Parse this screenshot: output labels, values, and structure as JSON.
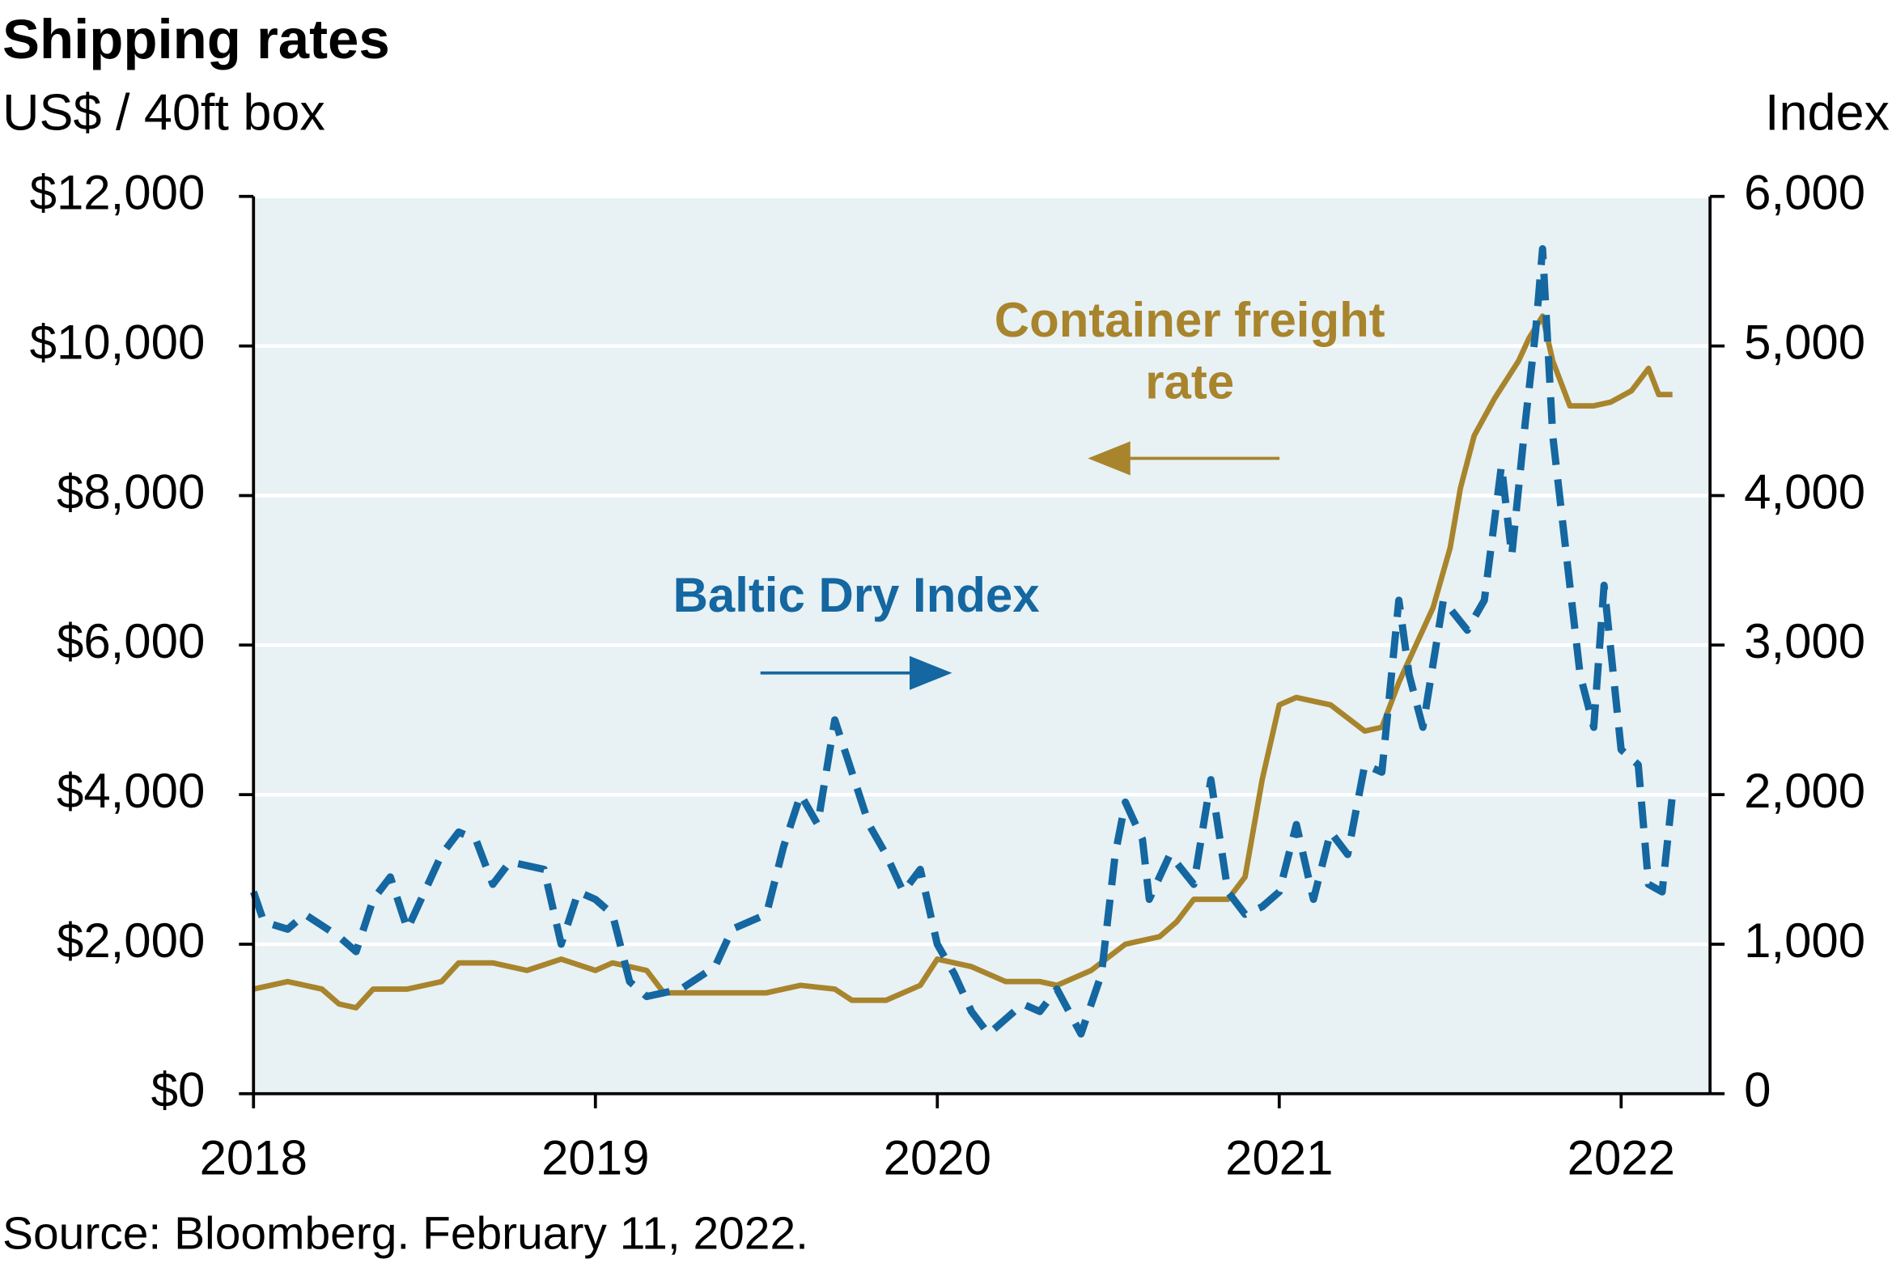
{
  "chart_data": {
    "type": "line",
    "title": "Shipping rates",
    "y_label": "US$ / 40ft box",
    "y2_label": "Index",
    "source": "Source: Bloomberg. February 11, 2022.",
    "annotations": [
      {
        "lines": [
          "Container freight",
          "rate"
        ],
        "color": "#a8842c"
      },
      {
        "lines": [
          "Baltic Dry Index"
        ],
        "color": "#1467a0"
      }
    ],
    "xlim": [
      2018,
      2022.26
    ],
    "xticks": [
      2018,
      2019,
      2020,
      2021,
      2022
    ],
    "ylim": [
      0,
      12000
    ],
    "yticks": [
      {
        "value": 0,
        "label": "$0"
      },
      {
        "value": 2000,
        "label": "$2,000"
      },
      {
        "value": 4000,
        "label": "$4,000"
      },
      {
        "value": 6000,
        "label": "$6,000"
      },
      {
        "value": 8000,
        "label": "$8,000"
      },
      {
        "value": 10000,
        "label": "$10,000"
      },
      {
        "value": 12000,
        "label": "$12,000"
      }
    ],
    "y2lim": [
      0,
      6000
    ],
    "y2ticks": [
      0,
      {
        "value": 1000,
        "label": "1,000"
      },
      {
        "value": 2000,
        "label": "2,000"
      },
      {
        "value": 3000,
        "label": "3,000"
      },
      {
        "value": 4000,
        "label": "4,000"
      },
      {
        "value": 5000,
        "label": "5,000"
      },
      {
        "value": 6000,
        "label": "6,000"
      }
    ],
    "grid": true,
    "background": "#e8f1f4",
    "series": [
      {
        "name": "Container freight rate",
        "color": "#a8842c",
        "dash": false,
        "x": [
          2018.0,
          2018.1,
          2018.2,
          2018.25,
          2018.3,
          2018.35,
          2018.45,
          2018.55,
          2018.6,
          2018.7,
          2018.8,
          2018.9,
          2019.0,
          2019.05,
          2019.15,
          2019.2,
          2019.3,
          2019.4,
          2019.5,
          2019.6,
          2019.7,
          2019.75,
          2019.85,
          2019.95,
          2020.0,
          2020.1,
          2020.2,
          2020.3,
          2020.35,
          2020.45,
          2020.55,
          2020.65,
          2020.7,
          2020.75,
          2020.85,
          2020.9,
          2020.95,
          2021.0,
          2021.05,
          2021.15,
          2021.25,
          2021.3,
          2021.35,
          2021.45,
          2021.5,
          2021.53,
          2021.57,
          2021.63,
          2021.7,
          2021.73,
          2021.77,
          2021.8,
          2021.85,
          2021.92,
          2021.97,
          2022.03,
          2022.08,
          2022.11,
          2022.15
        ],
        "values": [
          1400,
          1500,
          1400,
          1200,
          1150,
          1400,
          1400,
          1500,
          1750,
          1750,
          1650,
          1800,
          1650,
          1750,
          1650,
          1350,
          1350,
          1350,
          1350,
          1450,
          1400,
          1250,
          1250,
          1450,
          1800,
          1700,
          1500,
          1500,
          1450,
          1650,
          2000,
          2100,
          2300,
          2600,
          2600,
          2900,
          4200,
          5200,
          5300,
          5200,
          4850,
          4900,
          5500,
          6500,
          7300,
          8100,
          8800,
          9300,
          9800,
          10100,
          10400,
          9800,
          9200,
          9200,
          9250,
          9400,
          9700,
          9350,
          9350
        ]
      },
      {
        "name": "Baltic Dry Index",
        "color": "#1467a0",
        "dash": true,
        "axis": "y2",
        "x": [
          2018.0,
          2018.03,
          2018.1,
          2018.15,
          2018.25,
          2018.3,
          2018.35,
          2018.4,
          2018.45,
          2018.5,
          2018.55,
          2018.6,
          2018.65,
          2018.7,
          2018.75,
          2018.85,
          2018.9,
          2018.95,
          2019.0,
          2019.05,
          2019.1,
          2019.15,
          2019.25,
          2019.35,
          2019.4,
          2019.5,
          2019.55,
          2019.6,
          2019.65,
          2019.7,
          2019.75,
          2019.8,
          2019.85,
          2019.9,
          2019.95,
          2020.0,
          2020.05,
          2020.1,
          2020.15,
          2020.25,
          2020.3,
          2020.35,
          2020.42,
          2020.48,
          2020.52,
          2020.55,
          2020.6,
          2020.62,
          2020.68,
          2020.75,
          2020.8,
          2020.85,
          2020.9,
          2020.95,
          2021.0,
          2021.05,
          2021.1,
          2021.15,
          2021.2,
          2021.25,
          2021.3,
          2021.35,
          2021.38,
          2021.42,
          2021.48,
          2021.55,
          2021.6,
          2021.65,
          2021.68,
          2021.72,
          2021.75,
          2021.77,
          2021.8,
          2021.85,
          2021.88,
          2021.92,
          2021.95,
          2022.0,
          2022.05,
          2022.08,
          2022.12,
          2022.15
        ],
        "values": [
          1350,
          1150,
          1100,
          1200,
          1050,
          950,
          1300,
          1450,
          1100,
          1350,
          1600,
          1750,
          1700,
          1400,
          1550,
          1500,
          1000,
          1350,
          1300,
          1200,
          750,
          650,
          700,
          850,
          1100,
          1200,
          1650,
          2000,
          1800,
          2500,
          2150,
          1800,
          1600,
          1350,
          1500,
          1000,
          800,
          550,
          400,
          600,
          550,
          700,
          400,
          800,
          1600,
          1950,
          1700,
          1300,
          1600,
          1400,
          2100,
          1350,
          1200,
          1250,
          1350,
          1800,
          1300,
          1750,
          1600,
          2200,
          2150,
          3300,
          2800,
          2450,
          3300,
          3100,
          3300,
          4200,
          3600,
          4500,
          5100,
          5650,
          4400,
          3400,
          2800,
          2450,
          3400,
          2300,
          2200,
          1400,
          1350,
          2000
        ]
      }
    ]
  }
}
